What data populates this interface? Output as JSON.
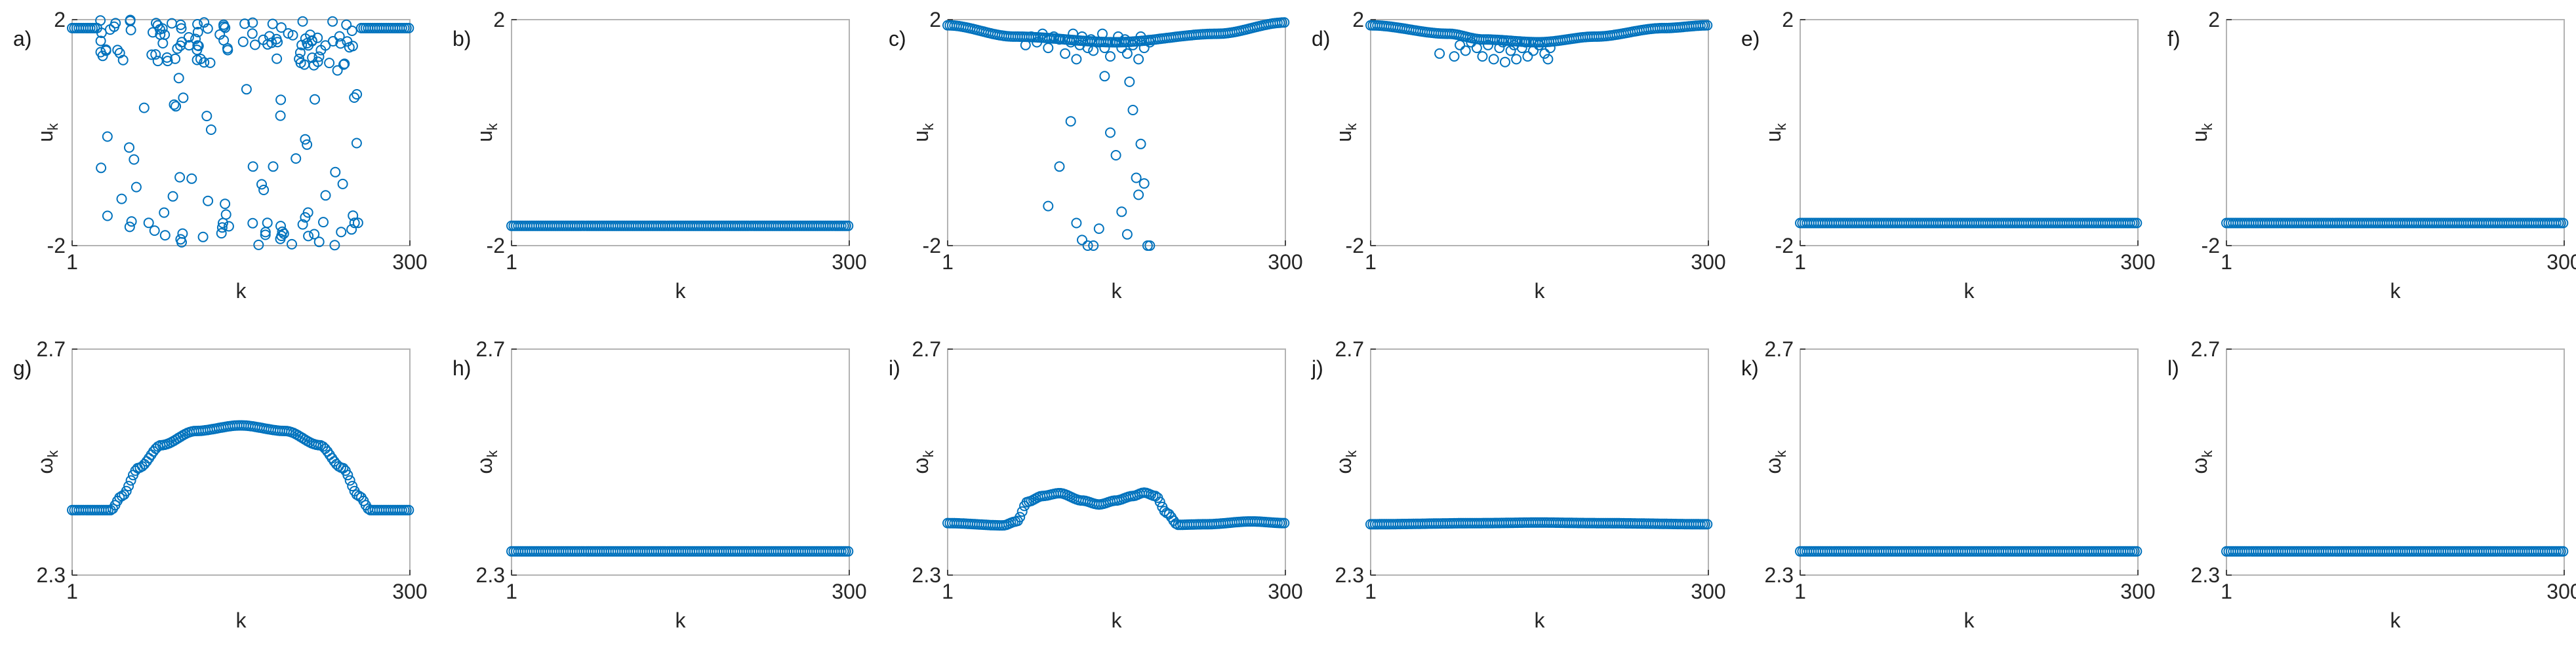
{
  "colors": {
    "series": "#0072bd",
    "frame": "#b3b3b3",
    "text": "#262626"
  },
  "chart_data": [
    {
      "label": "a)",
      "type": "scatter",
      "marker": "open-circle",
      "xlabel": "k",
      "ylabel": "u",
      "ylabel_sub": "k",
      "xlim": [
        1,
        300
      ],
      "ylim": [
        -2,
        2
      ],
      "xticks": [
        "1",
        "300"
      ],
      "yticks": [
        "2",
        "-2"
      ],
      "pattern": "noisy",
      "baseline": 1.85,
      "core_range": [
        25,
        255
      ],
      "scatter_count": 180,
      "description_values": {
        "edge_level": 1.85,
        "scatter_min": -2.0,
        "scatter_max": 2.0
      }
    },
    {
      "label": "b)",
      "type": "scatter",
      "marker": "open-circle",
      "xlabel": "k",
      "ylabel": "u",
      "ylabel_sub": "k",
      "xlim": [
        1,
        300
      ],
      "ylim": [
        -2,
        2
      ],
      "xticks": [
        "1",
        "300"
      ],
      "yticks": [
        "2",
        "-2"
      ],
      "pattern": "flat",
      "level": -1.65
    },
    {
      "label": "c)",
      "type": "scatter",
      "marker": "open-circle",
      "xlabel": "k",
      "ylabel": "u",
      "ylabel_sub": "k",
      "xlim": [
        1,
        300
      ],
      "ylim": [
        -2,
        2
      ],
      "xticks": [
        "1",
        "300"
      ],
      "yticks": [
        "2",
        "-2"
      ],
      "pattern": "partial-noisy",
      "curve": [
        [
          1,
          1.9
        ],
        [
          60,
          1.7
        ],
        [
          150,
          1.6
        ],
        [
          240,
          1.75
        ],
        [
          300,
          1.95
        ]
      ],
      "scatter_points": [
        [
          70,
          1.55
        ],
        [
          75,
          1.7
        ],
        [
          80,
          1.6
        ],
        [
          85,
          1.75
        ],
        [
          90,
          1.5
        ],
        [
          95,
          1.7
        ],
        [
          100,
          1.65
        ],
        [
          105,
          1.4
        ],
        [
          110,
          1.6
        ],
        [
          112,
          1.75
        ],
        [
          115,
          1.3
        ],
        [
          118,
          1.55
        ],
        [
          120,
          1.7
        ],
        [
          125,
          1.5
        ],
        [
          128,
          1.65
        ],
        [
          130,
          1.45
        ],
        [
          135,
          1.6
        ],
        [
          138,
          1.75
        ],
        [
          140,
          1.5
        ],
        [
          145,
          1.35
        ],
        [
          150,
          1.6
        ],
        [
          152,
          1.7
        ],
        [
          155,
          1.5
        ],
        [
          158,
          1.65
        ],
        [
          160,
          1.4
        ],
        [
          165,
          1.55
        ],
        [
          170,
          1.3
        ],
        [
          172,
          1.7
        ],
        [
          175,
          1.5
        ],
        [
          180,
          1.6
        ],
        [
          90,
          -1.3
        ],
        [
          100,
          -0.6
        ],
        [
          110,
          0.2
        ],
        [
          115,
          -1.6
        ],
        [
          120,
          -1.9
        ],
        [
          125,
          -2.0
        ],
        [
          130,
          -2.0
        ],
        [
          135,
          -1.7
        ],
        [
          140,
          1.0
        ],
        [
          145,
          0.0
        ],
        [
          150,
          -0.4
        ],
        [
          155,
          -1.4
        ],
        [
          160,
          -1.8
        ],
        [
          162,
          0.9
        ],
        [
          165,
          0.4
        ],
        [
          168,
          -0.8
        ],
        [
          170,
          -1.1
        ],
        [
          172,
          -0.2
        ],
        [
          175,
          -0.9
        ],
        [
          178,
          -2.0
        ],
        [
          180,
          -2.0
        ]
      ]
    },
    {
      "label": "d)",
      "type": "scatter",
      "marker": "open-circle",
      "xlabel": "k",
      "ylabel": "u",
      "ylabel_sub": "k",
      "xlim": [
        1,
        300
      ],
      "ylim": [
        -2,
        2
      ],
      "xticks": [
        "1",
        "300"
      ],
      "yticks": [
        "2",
        "-2"
      ],
      "pattern": "partial-noisy",
      "curve": [
        [
          1,
          1.9
        ],
        [
          70,
          1.75
        ],
        [
          100,
          1.65
        ],
        [
          150,
          1.6
        ],
        [
          200,
          1.7
        ],
        [
          260,
          1.85
        ],
        [
          300,
          1.9
        ]
      ],
      "scatter_points": [
        [
          80,
          1.55
        ],
        [
          85,
          1.45
        ],
        [
          90,
          1.6
        ],
        [
          95,
          1.5
        ],
        [
          100,
          1.35
        ],
        [
          105,
          1.55
        ],
        [
          110,
          1.3
        ],
        [
          115,
          1.5
        ],
        [
          118,
          1.6
        ],
        [
          120,
          1.25
        ],
        [
          125,
          1.45
        ],
        [
          128,
          1.55
        ],
        [
          130,
          1.3
        ],
        [
          135,
          1.5
        ],
        [
          138,
          1.6
        ],
        [
          140,
          1.35
        ],
        [
          145,
          1.45
        ],
        [
          150,
          1.55
        ],
        [
          155,
          1.4
        ],
        [
          158,
          1.3
        ],
        [
          160,
          1.5
        ],
        [
          62,
          1.4
        ],
        [
          75,
          1.35
        ]
      ]
    },
    {
      "label": "e)",
      "type": "scatter",
      "marker": "open-circle",
      "xlabel": "k",
      "ylabel": "u",
      "ylabel_sub": "k",
      "xlim": [
        1,
        300
      ],
      "ylim": [
        -2,
        2
      ],
      "xticks": [
        "1",
        "300"
      ],
      "yticks": [
        "2",
        "-2"
      ],
      "pattern": "flat",
      "level": -1.6
    },
    {
      "label": "f)",
      "type": "scatter",
      "marker": "open-circle",
      "xlabel": "k",
      "ylabel": "u",
      "ylabel_sub": "k",
      "xlim": [
        1,
        300
      ],
      "ylim": [
        -2,
        2
      ],
      "xticks": [
        "1",
        "300"
      ],
      "yticks": [
        "2",
        "-2"
      ],
      "pattern": "flat",
      "level": -1.6
    },
    {
      "label": "g)",
      "type": "scatter",
      "marker": "open-circle",
      "xlabel": "k",
      "ylabel": "ω",
      "ylabel_sub": "k",
      "xlim": [
        1,
        300
      ],
      "ylim": [
        2.3,
        2.7
      ],
      "xticks": [
        "1",
        "300"
      ],
      "yticks": [
        "2.7",
        "2.3"
      ],
      "pattern": "curve",
      "curve": [
        [
          1,
          2.415
        ],
        [
          35,
          2.415
        ],
        [
          45,
          2.44
        ],
        [
          60,
          2.49
        ],
        [
          80,
          2.53
        ],
        [
          110,
          2.555
        ],
        [
          150,
          2.565
        ],
        [
          190,
          2.555
        ],
        [
          220,
          2.53
        ],
        [
          240,
          2.49
        ],
        [
          255,
          2.44
        ],
        [
          265,
          2.415
        ],
        [
          300,
          2.415
        ]
      ]
    },
    {
      "label": "h)",
      "type": "scatter",
      "marker": "open-circle",
      "xlabel": "k",
      "ylabel": "ω",
      "ylabel_sub": "k",
      "xlim": [
        1,
        300
      ],
      "ylim": [
        2.3,
        2.7
      ],
      "xticks": [
        "1",
        "300"
      ],
      "yticks": [
        "2.7",
        "2.3"
      ],
      "pattern": "flat",
      "level": 2.342
    },
    {
      "label": "i)",
      "type": "scatter",
      "marker": "open-circle",
      "xlabel": "k",
      "ylabel": "ω",
      "ylabel_sub": "k",
      "xlim": [
        1,
        300
      ],
      "ylim": [
        2.3,
        2.7
      ],
      "xticks": [
        "1",
        "300"
      ],
      "yticks": [
        "2.7",
        "2.3"
      ],
      "pattern": "curve",
      "curve": [
        [
          1,
          2.392
        ],
        [
          50,
          2.388
        ],
        [
          62,
          2.395
        ],
        [
          72,
          2.43
        ],
        [
          85,
          2.44
        ],
        [
          100,
          2.445
        ],
        [
          120,
          2.432
        ],
        [
          135,
          2.425
        ],
        [
          150,
          2.432
        ],
        [
          165,
          2.44
        ],
        [
          175,
          2.446
        ],
        [
          185,
          2.44
        ],
        [
          195,
          2.41
        ],
        [
          205,
          2.389
        ],
        [
          230,
          2.39
        ],
        [
          270,
          2.395
        ],
        [
          300,
          2.392
        ]
      ]
    },
    {
      "label": "j)",
      "type": "scatter",
      "marker": "open-circle",
      "xlabel": "k",
      "ylabel": "ω",
      "ylabel_sub": "k",
      "xlim": [
        1,
        300
      ],
      "ylim": [
        2.3,
        2.7
      ],
      "xticks": [
        "1",
        "300"
      ],
      "yticks": [
        "2.7",
        "2.3"
      ],
      "pattern": "curve",
      "curve": [
        [
          1,
          2.39
        ],
        [
          100,
          2.392
        ],
        [
          150,
          2.393
        ],
        [
          200,
          2.392
        ],
        [
          300,
          2.39
        ]
      ]
    },
    {
      "label": "k)",
      "type": "scatter",
      "marker": "open-circle",
      "xlabel": "k",
      "ylabel": "ω",
      "ylabel_sub": "k",
      "xlim": [
        1,
        300
      ],
      "ylim": [
        2.3,
        2.7
      ],
      "xticks": [
        "1",
        "300"
      ],
      "yticks": [
        "2.7",
        "2.3"
      ],
      "pattern": "flat",
      "level": 2.342
    },
    {
      "label": "l)",
      "type": "scatter",
      "marker": "open-circle",
      "xlabel": "k",
      "ylabel": "ω",
      "ylabel_sub": "k",
      "xlim": [
        1,
        300
      ],
      "ylim": [
        2.3,
        2.7
      ],
      "xticks": [
        "1",
        "300"
      ],
      "yticks": [
        "2.7",
        "2.3"
      ],
      "pattern": "flat",
      "level": 2.342
    }
  ]
}
